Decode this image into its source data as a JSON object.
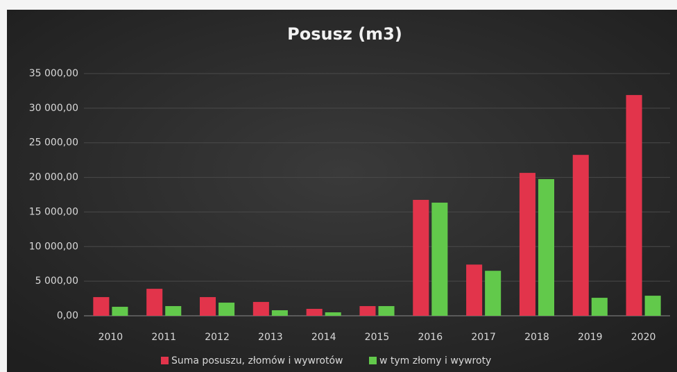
{
  "chart_data": {
    "type": "bar",
    "title": "Posusz (m3)",
    "categories": [
      "2010",
      "2011",
      "2012",
      "2013",
      "2014",
      "2015",
      "2016",
      "2017",
      "2018",
      "2019",
      "2020"
    ],
    "series": [
      {
        "name": "Suma posuszu, złomów i wywrotów",
        "color": "#e2344b",
        "values": [
          2700,
          3900,
          2700,
          2000,
          1000,
          1400,
          16750,
          7400,
          20650,
          23250,
          31900
        ]
      },
      {
        "name": "w tym złomy i wywroty",
        "color": "#62c94b",
        "values": [
          1300,
          1400,
          1900,
          800,
          500,
          1400,
          16350,
          6500,
          19750,
          2600,
          2900
        ]
      }
    ],
    "ylim": [
      0,
      35000
    ],
    "yticks": [
      {
        "value": 0,
        "label": "0,00"
      },
      {
        "value": 5000,
        "label": "5 000,00"
      },
      {
        "value": 10000,
        "label": "10 000,00"
      },
      {
        "value": 15000,
        "label": "15 000,00"
      },
      {
        "value": 20000,
        "label": "20 000,00"
      },
      {
        "value": 25000,
        "label": "25 000,00"
      },
      {
        "value": 30000,
        "label": "30 000,00"
      },
      {
        "value": 35000,
        "label": "35 000,00"
      }
    ],
    "grid": true,
    "legend": "bottom"
  }
}
